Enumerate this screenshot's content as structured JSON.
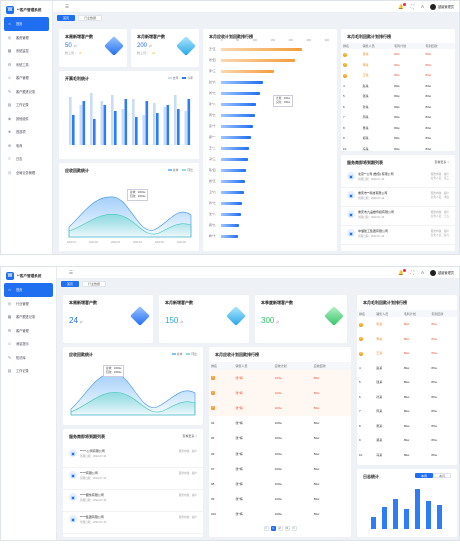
{
  "app": {
    "name": "**客户管理系统",
    "tab_home": "首页",
    "tab_page": "行业数据",
    "user": "超级管理员"
  },
  "nav1": [
    "首页",
    "客资管理",
    "系统监控",
    "系统工具",
    "客户管理",
    "客户跟进记录",
    "工作记录",
    "其他组件",
    "首选项",
    "电商",
    "日志",
    "全局业务管理"
  ],
  "nav2": [
    "首页",
    "行业管理",
    "客户跟进记录",
    "客户管理",
    "消息提示",
    "知识库",
    "工作记录"
  ],
  "s1": {
    "stat_week": {
      "title": "本周新增客户数",
      "value": "50",
      "unit": "户",
      "sub": "较上周 ↓",
      "delta": "8"
    },
    "stat_month": {
      "title": "本月新增客户数",
      "value": "200",
      "unit": "户",
      "sub": "较上月 ↑",
      "delta": "+5"
    },
    "open_title": "开票毛利统计",
    "open_legend": [
      "去年",
      "今年"
    ],
    "plan_title": "本月应收计划回款排行榜",
    "plan_axis": [
      "0",
      "50",
      "100",
      "150",
      "200",
      "250",
      "300"
    ],
    "plan_tooltip": [
      "计划：200w",
      "实际：160w"
    ],
    "rank_title": "本月毛利回款计划排行榜",
    "rank_head": [
      "排名",
      "销售人员",
      "毛利计划",
      "毛利回款"
    ],
    "trend_title": "应收回款统计",
    "trend_legend": [
      "总体",
      "环比"
    ],
    "trend_tooltip": [
      "总体：2000w",
      "回款：2000w"
    ],
    "trend_x": [
      "2020-01",
      "2020-02",
      "2020-03",
      "2020-04",
      "2020-05",
      "2020-06"
    ],
    "srv_title": "服务商即将到期列表",
    "srv_link": "查看更多 >",
    "srv_items": [
      {
        "t": "北京**公司 [数值] 有限公司",
        "d": "到期日期：2022-07-10",
        "r1": "服务内容：客户",
        "r2": "业务人员：张三"
      },
      {
        "t": "重庆市**科技有限公司",
        "d": "到期日期：2022-07-10",
        "r1": "服务内容：客户",
        "r2": "业务人员：李四"
      },
      {
        "t": "重庆市九品楼传媒有限公司",
        "d": "到期日期：2022-07-10",
        "r1": "服务内容：客户",
        "r2": "业务人员：王五"
      },
      {
        "t": "中储建工集团有限公司",
        "d": "到期日期：2022-07-10",
        "r1": "服务内容：客户",
        "r2": "业务人员：赵六"
      }
    ]
  },
  "s2": {
    "stat_week": {
      "title": "本周新增客户数",
      "value": "24",
      "unit": "户"
    },
    "stat_month": {
      "title": "本月新增客户数",
      "value": "150",
      "unit": "户"
    },
    "stat_quarter": {
      "title": "本季度新增客户数",
      "value": "300",
      "unit": "户"
    },
    "trend_title": "应收回款统计",
    "trend_legend": [
      "总体",
      "环比"
    ],
    "trend_tooltip": [
      "总体：1000w",
      "回款：1000w"
    ],
    "plan_title": "本月应收计划回款排行榜",
    "plan_head": [
      "排名",
      "销售人员",
      "应收计划",
      "应收回款"
    ],
    "rank_title": "本月毛利回款计划排行榜",
    "rank_head": [
      "排名",
      "销售人员",
      "毛利计划",
      "毛利回款"
    ],
    "srv_title": "服务商即将到期列表",
    "srv_link": "查看更多 >",
    "srv_items": [
      {
        "t": "*****-公司有限公司",
        "d": "到期日期：2022-07-10",
        "r": "服务内容：客户"
      },
      {
        "t": "*****有限公司",
        "d": "到期日期：2022-07-10",
        "r": "服务内容：客户"
      },
      {
        "t": "*****服务有限公司",
        "d": "到期日期：2022-07-10",
        "r": "服务内容：客户"
      },
      {
        "t": "*****集团有限公司",
        "d": "到期日期：2022-07-10",
        "r": "服务内容：客户"
      }
    ],
    "log_title": "日志统计",
    "log_tabs": [
      "本周",
      "本月"
    ],
    "pager": [
      "<",
      "1",
      "2",
      "3",
      ">"
    ]
  },
  "colors": {
    "primary": "#1f6ff0",
    "orange": "#f39c3a",
    "red": "#f24e36",
    "green": "#37c46a"
  }
}
